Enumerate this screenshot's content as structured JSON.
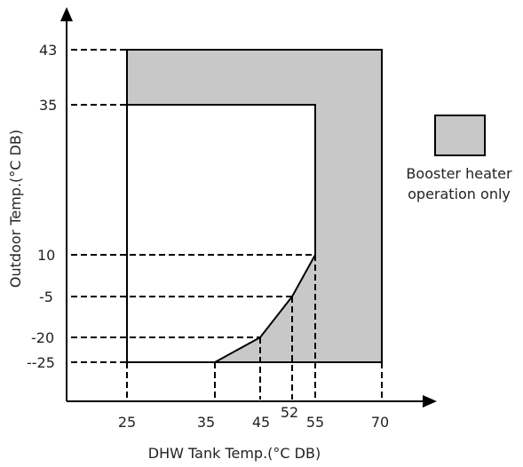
{
  "diagram": {
    "y_axis_title": "Outdoor Temp.(°C DB)",
    "x_axis_title": "DHW Tank Temp.(°C DB)",
    "y_ticks": [
      "43",
      "35",
      "10",
      "-5",
      "-20",
      "--25"
    ],
    "x_ticks": [
      "25",
      "35",
      "45",
      "52",
      "55",
      "70"
    ],
    "legend": {
      "line1": "Booster heater",
      "line2": "operation only",
      "swatch_color": "#c8c8c8"
    },
    "colors": {
      "shade": "#c8c8c8",
      "line": "#000000"
    }
  }
}
